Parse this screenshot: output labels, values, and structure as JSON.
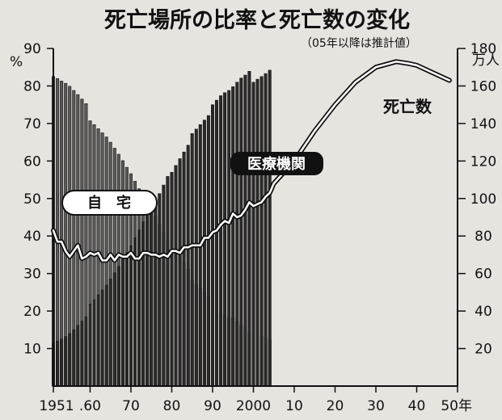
{
  "chart_data": {
    "type": "bar",
    "title": "死亡場所の比率と死亡数の変化",
    "subtitle": "（05年以降は推計値）",
    "left_axis": {
      "unit": "%",
      "ylim": [
        0,
        90
      ],
      "ticks": [
        "10",
        "20",
        "30",
        "40",
        "50",
        "60",
        "70",
        "80",
        "90"
      ]
    },
    "right_axis": {
      "unit": "万人",
      "ylim": [
        0,
        180
      ],
      "ticks": [
        "20",
        "40",
        "60",
        "80",
        "100",
        "120",
        "140",
        "160",
        "180"
      ]
    },
    "x_axis": {
      "xlim": [
        1951,
        2050
      ],
      "ticks": [
        "1951",
        ".60",
        "70",
        "80",
        "90",
        "2000",
        "10",
        "20",
        "30",
        "40",
        "50年"
      ]
    },
    "series": [
      {
        "name": "自宅",
        "kind": "bar",
        "axis": "left",
        "x": [
          1951,
          1952,
          1953,
          1954,
          1955,
          1956,
          1957,
          1958,
          1959,
          1960,
          1961,
          1962,
          1963,
          1964,
          1965,
          1966,
          1967,
          1968,
          1969,
          1970,
          1971,
          1972,
          1973,
          1974,
          1975,
          1976,
          1977,
          1978,
          1979,
          1980,
          1981,
          1982,
          1983,
          1984,
          1985,
          1986,
          1987,
          1988,
          1989,
          1990,
          1991,
          1992,
          1993,
          1994,
          1995,
          1996,
          1997,
          1998,
          1999,
          2000,
          2001,
          2002,
          2003,
          2004
        ],
        "values": [
          82.5,
          82.0,
          81.3,
          80.7,
          79.9,
          78.8,
          77.7,
          76.5,
          75.3,
          70.7,
          69.7,
          68.6,
          67.5,
          66.4,
          65.0,
          63.4,
          61.8,
          60.1,
          58.3,
          56.6,
          54.6,
          52.6,
          50.4,
          48.3,
          47.7,
          45.4,
          43.2,
          41.0,
          38.8,
          38.0,
          36.3,
          34.6,
          32.9,
          31.2,
          28.3,
          27.2,
          26.1,
          25.0,
          23.9,
          21.7,
          20.6,
          19.5,
          18.7,
          18.2,
          18.3,
          17.2,
          16.2,
          15.4,
          14.3,
          13.9,
          13.5,
          13.4,
          13.0,
          12.4
        ]
      },
      {
        "name": "医療機関",
        "kind": "bar",
        "axis": "left",
        "x": [
          1951,
          1952,
          1953,
          1954,
          1955,
          1956,
          1957,
          1958,
          1959,
          1960,
          1961,
          1962,
          1963,
          1964,
          1965,
          1966,
          1967,
          1968,
          1969,
          1970,
          1971,
          1972,
          1973,
          1974,
          1975,
          1976,
          1977,
          1978,
          1979,
          1980,
          1981,
          1982,
          1983,
          1984,
          1985,
          1986,
          1987,
          1988,
          1989,
          1990,
          1991,
          1992,
          1993,
          1994,
          1995,
          1996,
          1997,
          1998,
          1999,
          2000,
          2001,
          2002,
          2003,
          2004
        ],
        "values": [
          11.6,
          12.0,
          12.5,
          13.2,
          14.0,
          15.0,
          16.2,
          17.3,
          18.5,
          21.9,
          23.0,
          24.3,
          25.6,
          26.9,
          28.5,
          30.2,
          31.9,
          33.7,
          35.6,
          37.4,
          39.5,
          41.6,
          43.8,
          46.0,
          46.7,
          49.0,
          51.3,
          53.6,
          55.9,
          57.0,
          58.8,
          60.6,
          62.4,
          64.2,
          67.3,
          68.5,
          69.7,
          70.9,
          72.1,
          75.0,
          76.2,
          77.4,
          78.2,
          78.8,
          79.8,
          81.0,
          82.1,
          82.9,
          83.9,
          81.0,
          81.8,
          82.5,
          83.3,
          84.2
        ]
      },
      {
        "name": "死亡数",
        "kind": "line",
        "axis": "right",
        "x": [
          1951,
          1952,
          1953,
          1954,
          1955,
          1956,
          1957,
          1958,
          1959,
          1960,
          1961,
          1962,
          1963,
          1964,
          1965,
          1966,
          1967,
          1968,
          1969,
          1970,
          1971,
          1972,
          1973,
          1974,
          1975,
          1976,
          1977,
          1978,
          1979,
          1980,
          1981,
          1982,
          1983,
          1984,
          1985,
          1986,
          1987,
          1988,
          1989,
          1990,
          1991,
          1992,
          1993,
          1994,
          1995,
          1996,
          1997,
          1998,
          1999,
          2000,
          2001,
          2002,
          2003,
          2004,
          2005,
          2010,
          2015,
          2020,
          2025,
          2030,
          2035,
          2038,
          2040,
          2045,
          2048
        ],
        "values": [
          83,
          77,
          77,
          72,
          69,
          72,
          75,
          68,
          69,
          71,
          70,
          71,
          67,
          67,
          70,
          67,
          70,
          69,
          69,
          71,
          68,
          68,
          71,
          71,
          70,
          70,
          69,
          70,
          69,
          72,
          72,
          71,
          74,
          74,
          75,
          75,
          75,
          79,
          79,
          82,
          83,
          86,
          88,
          87,
          92,
          90,
          91,
          94,
          98,
          96,
          97,
          98,
          101,
          103,
          108,
          120,
          136,
          150,
          162,
          170,
          173,
          172,
          171,
          166,
          163
        ]
      }
    ],
    "annotations": [
      "自　宅",
      "医療機関",
      "死亡数"
    ]
  }
}
